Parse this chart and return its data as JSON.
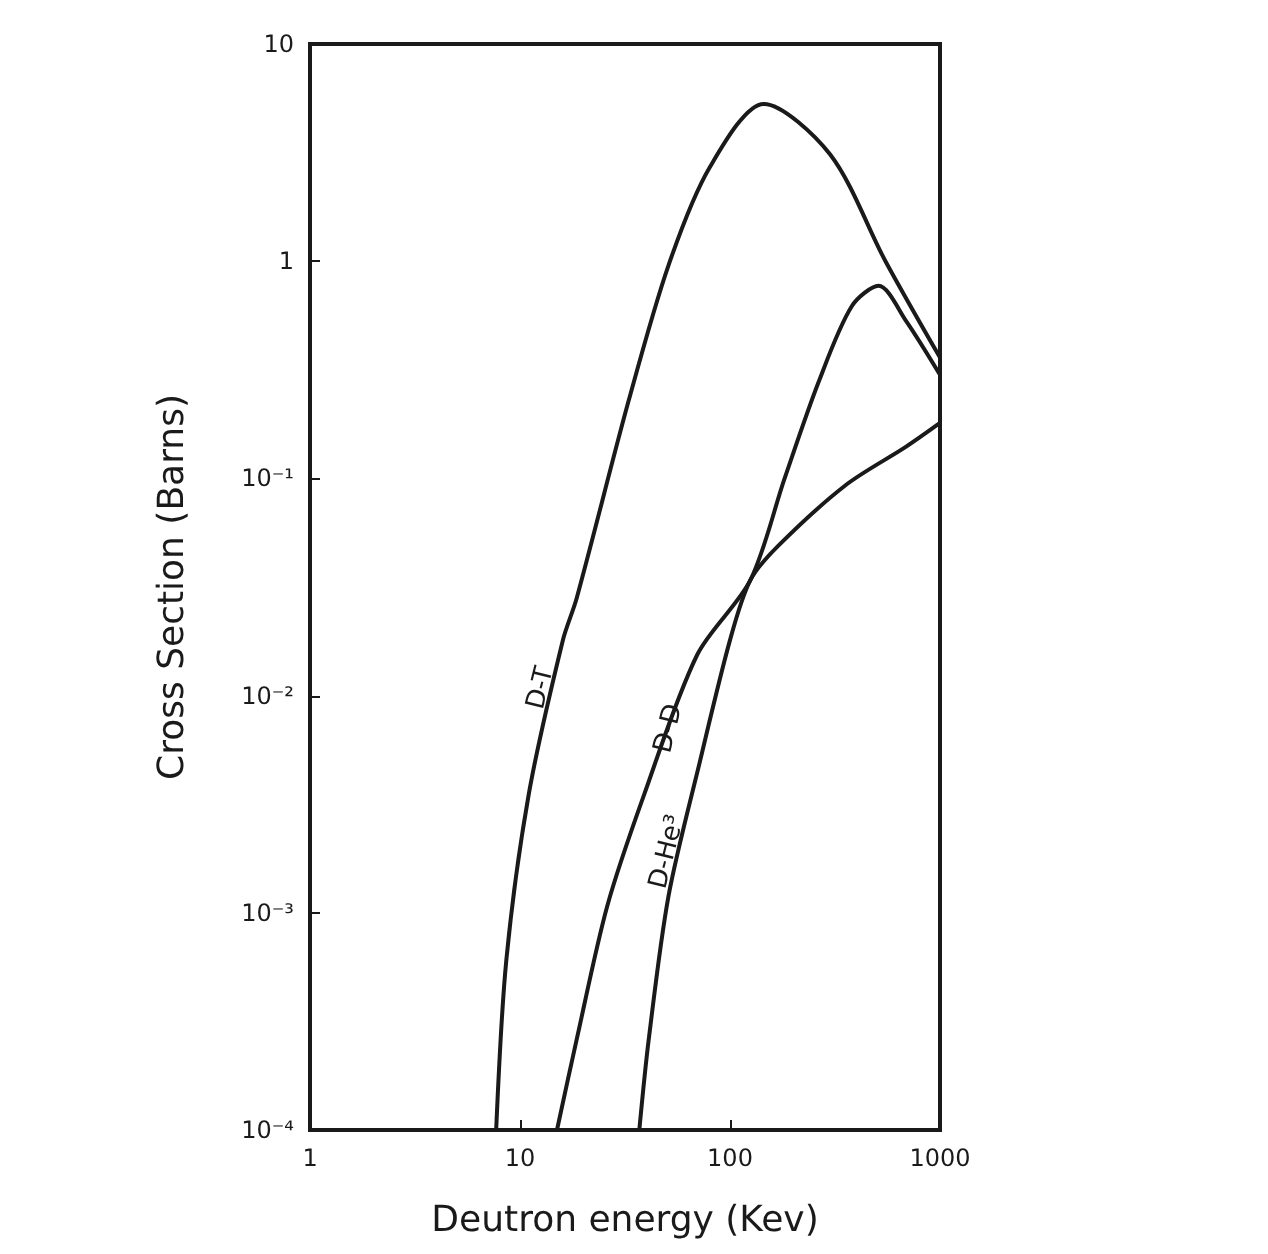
{
  "chart_data": {
    "type": "line",
    "xlabel": "Deutron energy (Kev)",
    "ylabel": "Cross Section (Barns)",
    "log": "xy",
    "grid": false,
    "legend": false,
    "xlim": [
      1,
      1000
    ],
    "xticks": [
      1,
      10,
      100,
      1000
    ],
    "ylim": [
      0.0001,
      10
    ],
    "yticks": [
      {
        "value": 10,
        "label": "10"
      },
      {
        "value": 1,
        "label": "1"
      },
      {
        "value": 0.1,
        "label": "10⁻¹"
      },
      {
        "value": 0.01,
        "label": "10⁻²"
      },
      {
        "value": 0.001,
        "label": "10⁻³"
      },
      {
        "value": 0.0001,
        "label": "10⁻⁴"
      }
    ],
    "series": [
      {
        "name": "D-T",
        "color": "#1a1a1a",
        "x": [
          7.7,
          8.6,
          11,
          16,
          18.6,
          33,
          51,
          80,
          145,
          300,
          550,
          1000
        ],
        "values": [
          0.0001,
          0.0006,
          0.0035,
          0.018,
          0.028,
          0.23,
          0.96,
          2.7,
          5.3,
          3.1,
          1.0,
          0.36
        ]
      },
      {
        "name": "D-D",
        "color": "#1a1a1a",
        "x": [
          15,
          18.6,
          26,
          39,
          70,
          125,
          182,
          265,
          380,
          510,
          690,
          1000
        ],
        "values": [
          0.0001,
          0.00026,
          0.00107,
          0.0035,
          0.0155,
          0.034,
          0.1,
          0.28,
          0.62,
          0.77,
          0.53,
          0.3
        ]
      },
      {
        "name": "D-He³",
        "color": "#1a1a1a",
        "x": [
          37,
          41,
          51,
          72,
          100,
          125,
          170,
          355,
          690,
          1000
        ],
        "values": [
          0.0001,
          0.00026,
          0.0012,
          0.005,
          0.018,
          0.034,
          0.049,
          0.093,
          0.14,
          0.18
        ]
      }
    ]
  }
}
